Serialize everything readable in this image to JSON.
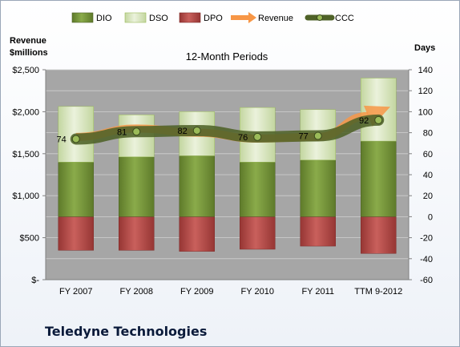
{
  "chart_data": {
    "type": "bar",
    "title": "12-Month Periods",
    "categories": [
      "FY 2007",
      "FY 2008",
      "FY 2009",
      "FY 2010",
      "FY 2011",
      "TTM 9-2012"
    ],
    "left_axis": {
      "label_line1": "Revenue",
      "label_line2": "$millions",
      "ylim": [
        0,
        2500
      ],
      "ticks": [
        0,
        500,
        1000,
        1500,
        2000,
        2500
      ],
      "tick_labels": [
        "$-",
        "$500",
        "$1,000",
        "$1,500",
        "$2,000",
        "$2,500"
      ]
    },
    "right_axis": {
      "label": "Days",
      "ylim": [
        -60,
        140
      ],
      "ticks": [
        -60,
        -40,
        -20,
        0,
        20,
        40,
        60,
        80,
        100,
        120,
        140
      ]
    },
    "series": [
      {
        "name": "DIO",
        "kind": "bar",
        "values": [
          52,
          57,
          58,
          52,
          54,
          72
        ]
      },
      {
        "name": "DSO",
        "kind": "bar",
        "values": [
          53,
          40,
          42,
          52,
          48,
          60
        ]
      },
      {
        "name": "DPO",
        "kind": "bar",
        "values": [
          -32,
          -32,
          -33,
          -31,
          -28,
          -35
        ]
      },
      {
        "name": "Revenue",
        "kind": "line",
        "values": [
          1700,
          1800,
          1750,
          1680,
          1700,
          2000
        ]
      },
      {
        "name": "CCC",
        "kind": "line",
        "values": [
          74,
          81,
          82,
          76,
          77,
          92
        ]
      }
    ],
    "ccc_labels": [
      "74",
      "81",
      "82",
      "76",
      "77",
      "92"
    ],
    "grid": true,
    "legend": "top",
    "colors": {
      "DIO": "#77933c",
      "DSO": "#d7e4bd",
      "DPO": "#c0504d",
      "Revenue": "#f79646",
      "CCC": "#4f6228",
      "plot_bg": "#a6a6a6"
    }
  },
  "company": "Teledyne Technologies"
}
